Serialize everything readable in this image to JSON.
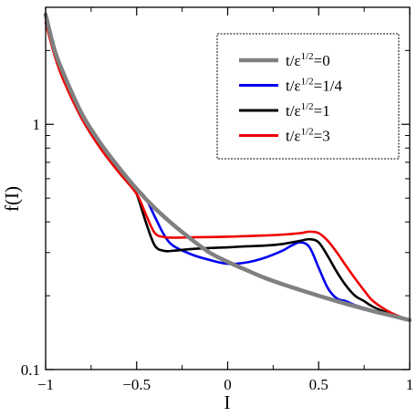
{
  "chart_data": {
    "type": "line",
    "xlabel": "I",
    "ylabel": "f(I)",
    "xlim": [
      -1,
      1
    ],
    "ylim": [
      0.1,
      3.0
    ],
    "yscale": "log",
    "grid": false,
    "legend_position": "top-right",
    "x_ticks": [
      -1,
      -0.5,
      0,
      0.5,
      1
    ],
    "x_tick_labels": [
      "−1",
      "−0.5",
      "0",
      "0.5",
      "1"
    ],
    "y_ticks": [
      0.1,
      1
    ],
    "y_tick_labels": [
      "0.1",
      "1"
    ],
    "series": [
      {
        "name": "t/ε=0",
        "legend_base": "t/ε",
        "legend_sup": "1/2",
        "legend_tail": "=0",
        "color": "#808080",
        "x": [
          -1.0,
          -0.95,
          -0.9,
          -0.8,
          -0.7,
          -0.6,
          -0.5,
          -0.4,
          -0.3,
          -0.2,
          -0.1,
          0.0,
          0.1,
          0.2,
          0.3,
          0.4,
          0.5,
          0.6,
          0.7,
          0.8,
          0.9,
          1.0
        ],
        "y": [
          2.8,
          2.0,
          1.6,
          1.1,
          0.84,
          0.67,
          0.545,
          0.455,
          0.39,
          0.34,
          0.3,
          0.275,
          0.255,
          0.237,
          0.223,
          0.211,
          0.2,
          0.19,
          0.181,
          0.173,
          0.166,
          0.159
        ]
      },
      {
        "name": "t/ε=1/4",
        "legend_base": "t/ε",
        "legend_sup": "1/2",
        "legend_tail": "=1/4",
        "color": "#0000ee",
        "x": [
          -1.0,
          -0.95,
          -0.9,
          -0.8,
          -0.7,
          -0.6,
          -0.5,
          -0.45,
          -0.4,
          -0.35,
          -0.3,
          -0.2,
          -0.1,
          0.0,
          0.1,
          0.2,
          0.3,
          0.35,
          0.4,
          0.45,
          0.5,
          0.55,
          0.6,
          0.65,
          0.7,
          0.8,
          0.9,
          1.0
        ],
        "y": [
          2.8,
          2.0,
          1.6,
          1.1,
          0.84,
          0.67,
          0.55,
          0.5,
          0.42,
          0.355,
          0.32,
          0.295,
          0.28,
          0.27,
          0.273,
          0.285,
          0.305,
          0.32,
          0.33,
          0.315,
          0.26,
          0.215,
          0.195,
          0.19,
          0.183,
          0.174,
          0.166,
          0.159
        ]
      },
      {
        "name": "t/ε=1",
        "legend_base": "t/ε",
        "legend_sup": "1/2",
        "legend_tail": "=1",
        "color": "#000000",
        "x": [
          -1.0,
          -0.95,
          -0.9,
          -0.8,
          -0.7,
          -0.6,
          -0.55,
          -0.5,
          -0.45,
          -0.4,
          -0.35,
          -0.3,
          -0.2,
          -0.1,
          0.0,
          0.1,
          0.2,
          0.3,
          0.4,
          0.45,
          0.5,
          0.55,
          0.6,
          0.65,
          0.7,
          0.75,
          0.8,
          0.9,
          1.0
        ],
        "y": [
          2.8,
          2.0,
          1.6,
          1.1,
          0.84,
          0.66,
          0.6,
          0.52,
          0.4,
          0.32,
          0.305,
          0.305,
          0.31,
          0.313,
          0.315,
          0.318,
          0.32,
          0.325,
          0.335,
          0.34,
          0.33,
          0.29,
          0.25,
          0.22,
          0.2,
          0.19,
          0.18,
          0.168,
          0.159
        ]
      },
      {
        "name": "t/ε=3",
        "legend_base": "t/ε",
        "legend_sup": "1/2",
        "legend_tail": "=3",
        "color": "#ee0000",
        "x": [
          -1.0,
          -0.95,
          -0.9,
          -0.8,
          -0.7,
          -0.6,
          -0.5,
          -0.45,
          -0.4,
          -0.35,
          -0.3,
          -0.2,
          -0.1,
          0.0,
          0.1,
          0.2,
          0.3,
          0.4,
          0.45,
          0.5,
          0.55,
          0.6,
          0.65,
          0.7,
          0.75,
          0.8,
          0.9,
          1.0
        ],
        "y": [
          2.6,
          1.9,
          1.5,
          1.05,
          0.8,
          0.64,
          0.52,
          0.43,
          0.36,
          0.347,
          0.345,
          0.346,
          0.347,
          0.348,
          0.35,
          0.352,
          0.355,
          0.36,
          0.365,
          0.36,
          0.335,
          0.3,
          0.265,
          0.235,
          0.21,
          0.19,
          0.17,
          0.159
        ]
      }
    ]
  }
}
